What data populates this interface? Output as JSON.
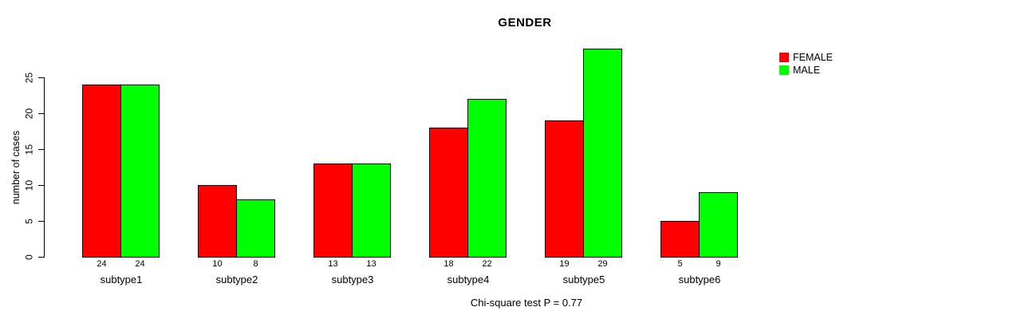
{
  "title": "GENDER",
  "footer": "Chi-square test P = 0.77",
  "colors": {
    "female": "#FF0000",
    "male": "#00FF00",
    "axis": "#000000",
    "background": "#FFFFFF"
  },
  "legend": {
    "position": "top-right",
    "items": [
      {
        "label": "FEMALE",
        "color": "#FF0000"
      },
      {
        "label": "MALE",
        "color": "#00FF00"
      }
    ]
  },
  "chart_data": {
    "type": "bar",
    "title": "GENDER",
    "xlabel": "",
    "ylabel": "number of cases",
    "categories": [
      "subtype1",
      "subtype2",
      "subtype3",
      "subtype4",
      "subtype5",
      "subtype6"
    ],
    "series": [
      {
        "name": "FEMALE",
        "color": "#FF0000",
        "values": [
          24,
          10,
          13,
          18,
          19,
          5
        ]
      },
      {
        "name": "MALE",
        "color": "#00FF00",
        "values": [
          24,
          8,
          13,
          22,
          29,
          9
        ]
      }
    ],
    "bar_value_labels": [
      [
        "24",
        "24"
      ],
      [
        "10",
        "8"
      ],
      [
        "13",
        "13"
      ],
      [
        "18",
        "22"
      ],
      [
        "19",
        "29"
      ],
      [
        "5",
        "9"
      ]
    ],
    "yticks": [
      0,
      5,
      10,
      15,
      20,
      25
    ],
    "ylim": [
      0,
      29
    ],
    "grid": false,
    "legend_position": "top-right",
    "annotation": "Chi-square test P = 0.77"
  }
}
